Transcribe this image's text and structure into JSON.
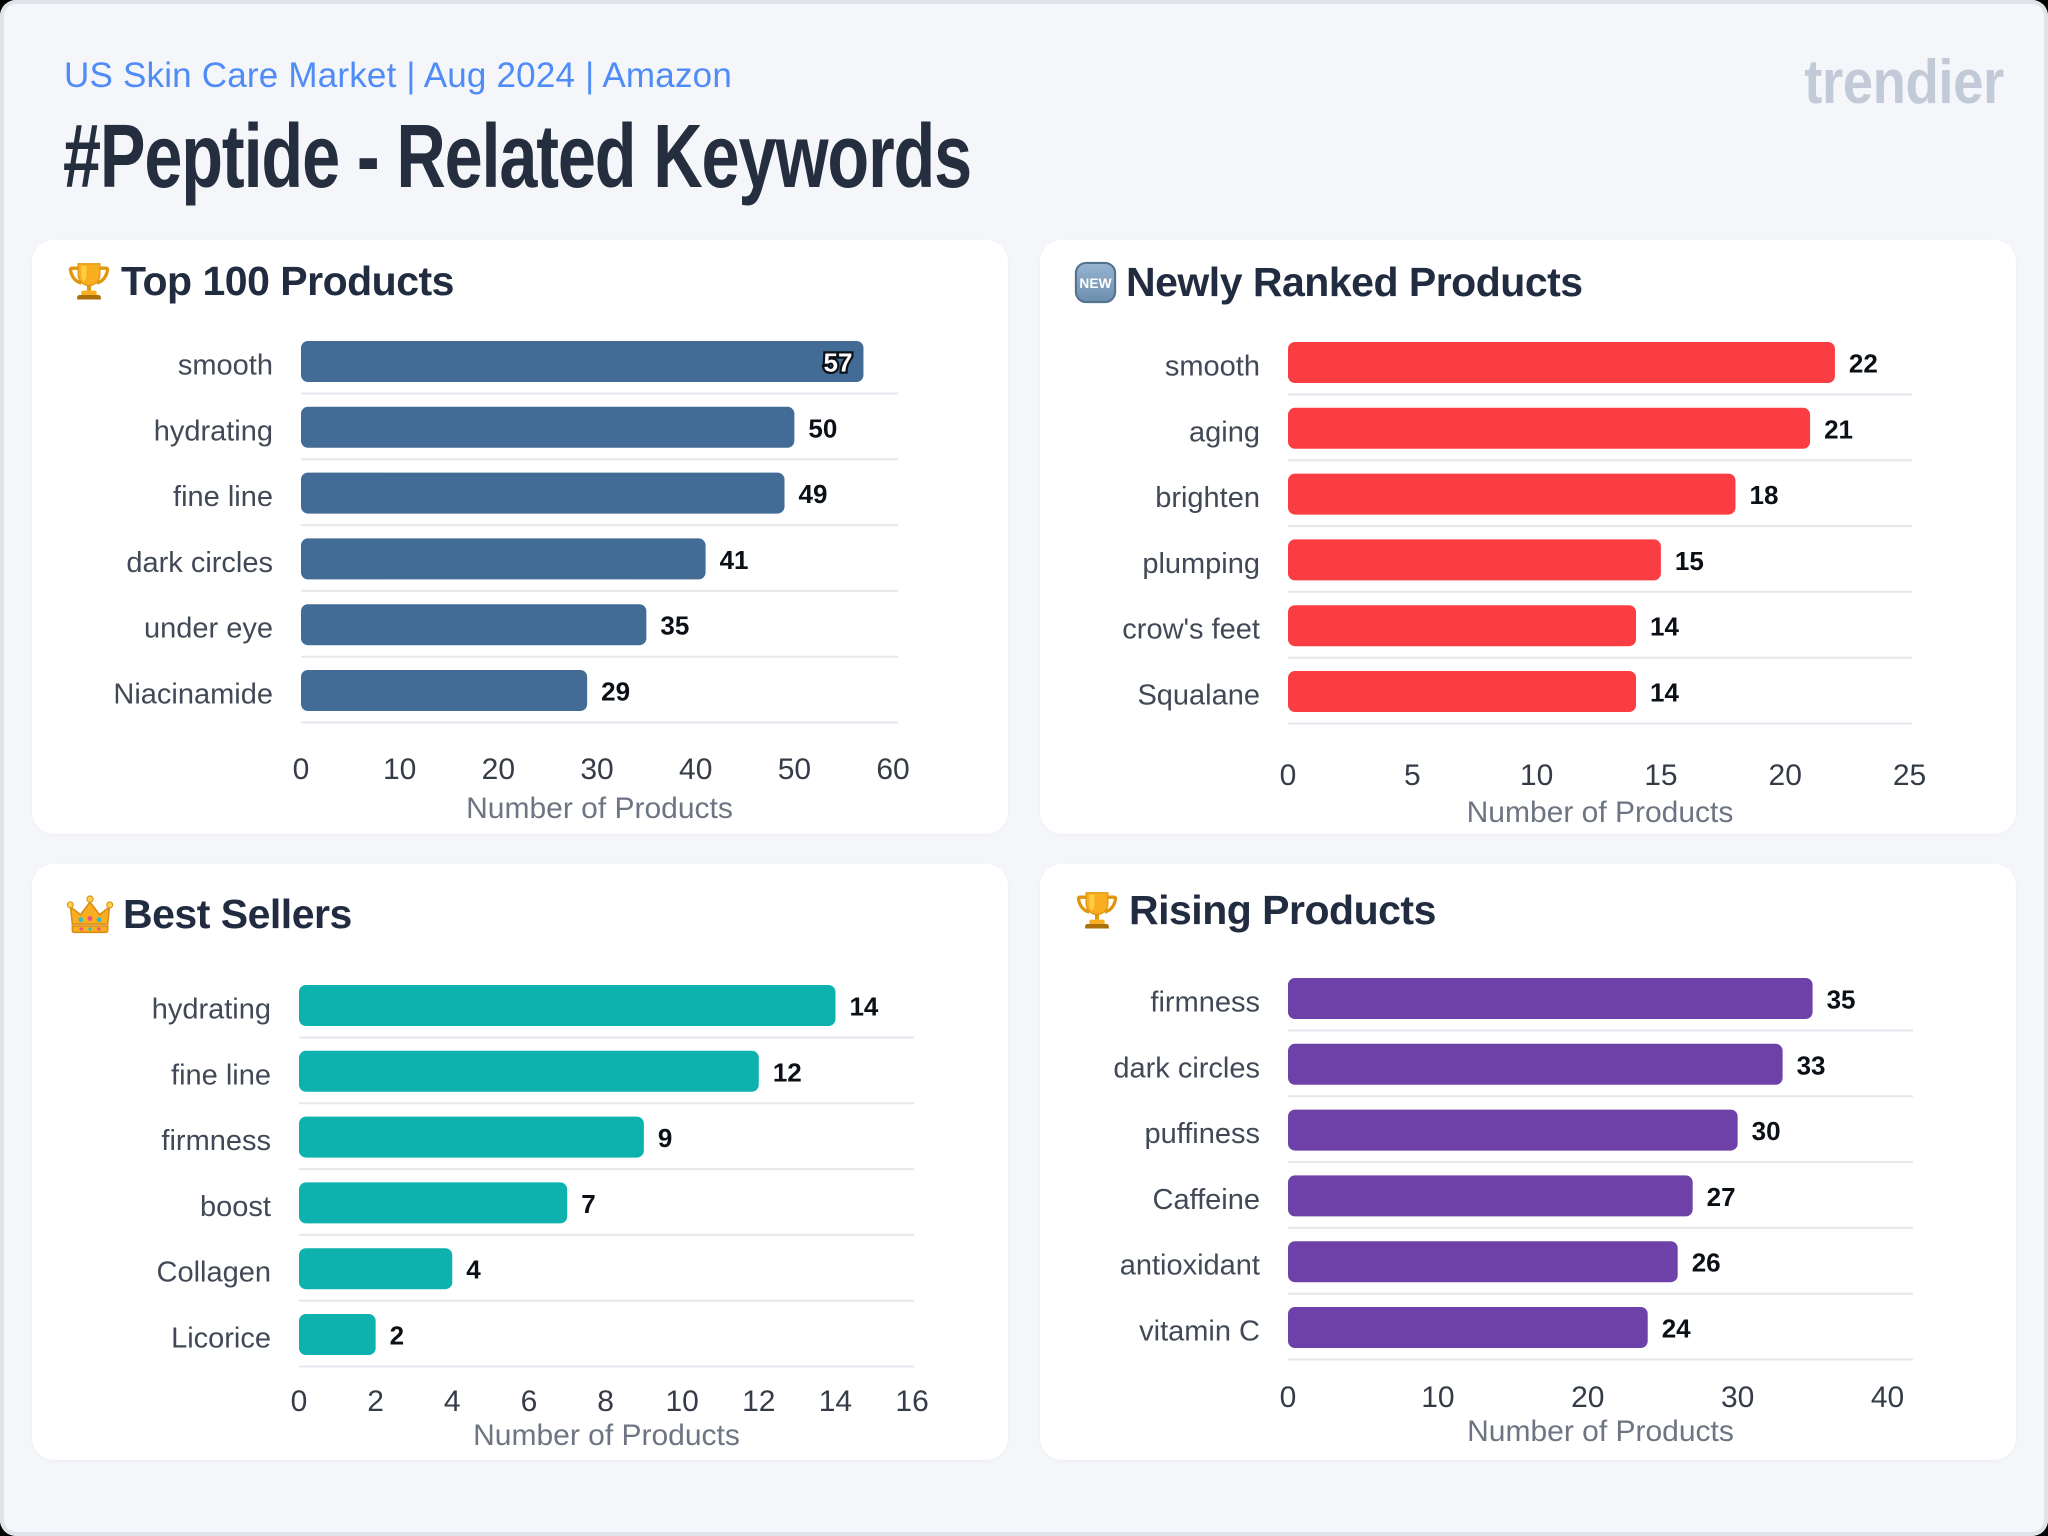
{
  "page": {
    "subtitle": "US Skin Care Market | Aug 2024 | Amazon",
    "title": "#Peptide - Related Keywords",
    "logo": "trendier",
    "background_color": "#f4f6fa",
    "subtitle_color": "#4f8cf7",
    "title_color": "#242e3f"
  },
  "chart_data": [
    {
      "type": "bar",
      "orientation": "horizontal",
      "title": "Top 100 Products",
      "icon": "trophy-icon",
      "bar_color": "#426b95",
      "categories": [
        "smooth",
        "hydrating",
        "fine line",
        "dark circles",
        "under eye",
        "Niacinamide"
      ],
      "values": [
        57,
        50,
        49,
        41,
        35,
        29
      ],
      "xlabel": "Number of Products",
      "xlim": [
        0,
        60.5
      ],
      "xticks": [
        0,
        10,
        20,
        30,
        40,
        50,
        60
      ],
      "grid": "row-separators",
      "legend": "none"
    },
    {
      "type": "bar",
      "orientation": "horizontal",
      "title": "Newly Ranked Products",
      "icon": "new-button-icon",
      "bar_color": "#fa3d42",
      "categories": [
        "smooth",
        "aging",
        "brighten",
        "plumping",
        "crow's feet",
        "Squalane"
      ],
      "values": [
        22,
        21,
        18,
        15,
        14,
        14
      ],
      "xlabel": "Number of Products",
      "xlim": [
        0,
        25.1
      ],
      "xticks": [
        0,
        5,
        10,
        15,
        20,
        25
      ],
      "grid": "row-separators",
      "legend": "none"
    },
    {
      "type": "bar",
      "orientation": "horizontal",
      "title": "Best Sellers",
      "icon": "crown-icon",
      "bar_color": "#0db1ae",
      "categories": [
        "hydrating",
        "fine line",
        "firmness",
        "boost",
        "Collagen",
        "Licorice"
      ],
      "values": [
        14,
        12,
        9,
        7,
        4,
        2
      ],
      "xlabel": "Number of Products",
      "xlim": [
        0,
        16.05
      ],
      "xticks": [
        0,
        2,
        4,
        6,
        8,
        10,
        12,
        14,
        16
      ],
      "grid": "row-separators",
      "legend": "none"
    },
    {
      "type": "bar",
      "orientation": "horizontal",
      "title": "Rising Products",
      "icon": "trophy-icon",
      "bar_color": "#6e41a8",
      "categories": [
        "firmness",
        "dark circles",
        "puffiness",
        "Caffeine",
        "antioxidant",
        "vitamin C"
      ],
      "values": [
        35,
        33,
        30,
        27,
        26,
        24
      ],
      "xlabel": "Number of Products",
      "xlim": [
        0,
        41.7
      ],
      "xticks": [
        0,
        10,
        20,
        30,
        40
      ],
      "grid": "row-separators",
      "legend": "none"
    }
  ]
}
